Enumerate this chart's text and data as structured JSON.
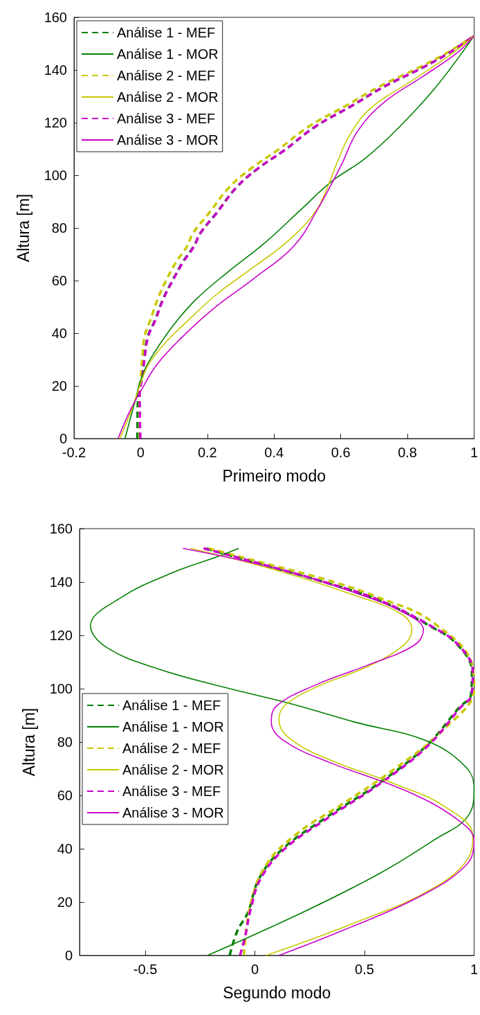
{
  "chart_data": [
    {
      "type": "line",
      "xlabel": "Primeiro modo",
      "ylabel": "Altura [m]",
      "xlim": [
        -0.2,
        1
      ],
      "xticks": [
        -0.2,
        0,
        0.2,
        0.4,
        0.6,
        0.8,
        1
      ],
      "ylim": [
        0,
        160
      ],
      "yticks": [
        0,
        20,
        40,
        60,
        80,
        100,
        120,
        140,
        160
      ],
      "grid": false,
      "legend": "top left",
      "marker": "none",
      "series": [
        {
          "name": "Análise 1 - MEF",
          "color": "#008000",
          "line_style": "dashed",
          "x": [
            -0.01,
            -0.008,
            0.004,
            0.011,
            0.022,
            0.043,
            0.067,
            0.095,
            0.126,
            0.159,
            0.179,
            0.226,
            0.288,
            0.352,
            0.431,
            0.524,
            0.635,
            0.729,
            0.847,
            0.926,
            1
          ],
          "values": [
            0,
            16.8,
            24,
            31,
            39,
            45,
            53,
            60,
            67,
            73,
            78,
            85.5,
            95.5,
            102.6,
            109.5,
            118.5,
            126.5,
            133.6,
            141,
            146.6,
            153
          ]
        },
        {
          "name": "Análise 1 - MOR",
          "color": "#008000",
          "line_style": "solid",
          "x": [
            -0.047,
            -0.02,
            0.008,
            0.048,
            0.104,
            0.167,
            0.263,
            0.374,
            0.486,
            0.572,
            0.674,
            0.777,
            0.886,
            1
          ],
          "values": [
            0,
            12.7,
            25,
            34,
            44,
            53,
            63.4,
            74.5,
            87.6,
            97.6,
            106.5,
            118.5,
            133.6,
            153
          ]
        },
        {
          "name": "Análise 2 - MEF",
          "color": "#c8c800",
          "line_style": "dashed",
          "x": [
            -0.003,
            -0.004,
            0.001,
            0.005,
            0.012,
            0.029,
            0.051,
            0.076,
            0.106,
            0.139,
            0.157,
            0.204,
            0.266,
            0.331,
            0.41,
            0.504,
            0.617,
            0.714,
            0.836,
            0.92,
            1
          ],
          "values": [
            0,
            16.8,
            24,
            31,
            39,
            45,
            53,
            60,
            67,
            73,
            78,
            85.5,
            95.5,
            102.6,
            109.5,
            118.5,
            126.5,
            133.6,
            141,
            146.6,
            153
          ]
        },
        {
          "name": "Análise 2 - MOR",
          "color": "#c8c800",
          "line_style": "solid",
          "x": [
            -0.063,
            -0.031,
            0,
            0.023,
            0.071,
            0.135,
            0.23,
            0.342,
            0.446,
            0.526,
            0.564,
            0.588,
            0.628,
            0.69,
            0.808,
            0.926,
            1
          ],
          "values": [
            0,
            9.7,
            21,
            28,
            36,
            44,
            55,
            65.4,
            75.5,
            86.6,
            96.6,
            104.5,
            115.5,
            125.5,
            135.5,
            145.5,
            153
          ]
        },
        {
          "name": "Análise 3 - MEF",
          "color": "#cc00cc",
          "line_style": "dashed",
          "x": [
            -0.001,
            -0.003,
            0.006,
            0.012,
            0.023,
            0.044,
            0.068,
            0.096,
            0.127,
            0.16,
            0.179,
            0.227,
            0.288,
            0.352,
            0.431,
            0.524,
            0.635,
            0.729,
            0.847,
            0.926,
            1
          ],
          "values": [
            0,
            16.8,
            24,
            31,
            39,
            45,
            53,
            60,
            67,
            73,
            78,
            85.5,
            95.5,
            102.6,
            109.5,
            118.5,
            126.5,
            133.6,
            141,
            146.6,
            153
          ]
        },
        {
          "name": "Análise 3 - MOR",
          "color": "#cc00cc",
          "line_style": "solid",
          "x": [
            -0.068,
            -0.031,
            0,
            0.048,
            0.12,
            0.215,
            0.342,
            0.462,
            0.533,
            0.572,
            0.604,
            0.65,
            0.729,
            0.847,
            0.95,
            1
          ],
          "values": [
            0,
            10.8,
            18,
            28,
            38,
            49,
            61,
            73.5,
            87.6,
            96.6,
            104.5,
            116.6,
            127.6,
            137.6,
            146.6,
            153
          ]
        }
      ]
    },
    {
      "type": "line",
      "xlabel": "Segundo modo",
      "ylabel": "Altura [m]",
      "xlim": [
        -0.8,
        1
      ],
      "xticks": [
        -0.5,
        0,
        0.5,
        1
      ],
      "ylim": [
        0,
        160
      ],
      "yticks": [
        0,
        20,
        40,
        60,
        80,
        100,
        120,
        140,
        160
      ],
      "grid": false,
      "legend": "left",
      "marker": "none",
      "series": [
        {
          "name": "Análise 1 - MEF",
          "color": "#008000",
          "line_style": "dashed",
          "x": [
            -0.115,
            -0.08,
            -0.032,
            0.02,
            0.125,
            0.325,
            0.565,
            0.78,
            0.935,
            0.985,
            0.99,
            0.925,
            0.805,
            0.57,
            0.335,
            0.035,
            -0.224
          ],
          "values": [
            0,
            9.2,
            16.1,
            28.9,
            39.8,
            51.7,
            64.5,
            78.4,
            93.2,
            97.5,
            106.4,
            116.4,
            123.2,
            133,
            139.5,
            146.5,
            152.6
          ]
        },
        {
          "name": "Análise 1 - MOR",
          "color": "#008000",
          "line_style": "solid",
          "x": [
            -0.216,
            0.217,
            0.573,
            0.81,
            0.976,
            1,
            0.964,
            0.787,
            0.455,
            0.158,
            -0.139,
            -0.436,
            -0.673,
            -0.75,
            -0.614,
            -0.376,
            -0.174,
            -0.074
          ],
          "values": [
            0,
            16.1,
            30.9,
            42.9,
            52.7,
            62.6,
            70.5,
            80.3,
            87.5,
            94.5,
            100.5,
            107.3,
            115.3,
            123.6,
            134,
            143.5,
            149.4,
            152.6
          ]
        },
        {
          "name": "Análise 2 - MEF",
          "color": "#c8c800",
          "line_style": "dashed",
          "x": [
            -0.05,
            -0.02,
            0.051,
            0.193,
            0.396,
            0.632,
            0.869,
            1,
            0.994,
            0.81,
            0.57,
            0.34,
            0.045,
            -0.21
          ],
          "values": [
            0,
            19,
            33.9,
            45.7,
            56.6,
            69.6,
            85.3,
            100,
            108,
            125,
            134,
            140.5,
            147,
            152.6
          ]
        },
        {
          "name": "Análise 2 - MOR",
          "color": "#c8c800",
          "line_style": "solid",
          "x": [
            0.051,
            0.455,
            0.81,
            0.976,
            0.994,
            0.869,
            0.632,
            0.336,
            0.158,
            0.11,
            0.134,
            0.277,
            0.514,
            0.68,
            0.716,
            0.668,
            0.455,
            0.098,
            -0.293
          ],
          "values": [
            0,
            12.2,
            25,
            36.9,
            44.8,
            55.7,
            64.5,
            73.5,
            81.4,
            88.3,
            93.5,
            100.5,
            108.3,
            116.4,
            122,
            128,
            135,
            144.4,
            152.6
          ]
        },
        {
          "name": "Análise 3 - MEF",
          "color": "#cc00cc",
          "line_style": "dashed",
          "x": [
            -0.068,
            -0.044,
            -0.02,
            0.027,
            0.134,
            0.336,
            0.573,
            0.787,
            0.941,
            0.988,
            0.994,
            0.928,
            0.81,
            0.573,
            0.336,
            0.039,
            -0.234
          ],
          "values": [
            0,
            7.3,
            17.1,
            28.9,
            39.8,
            51.7,
            64.5,
            78.4,
            93.2,
            97.5,
            106.4,
            116.4,
            123.2,
            133,
            139.5,
            146.5,
            152.6
          ]
        },
        {
          "name": "Análise 3 - MOR",
          "color": "#cc00cc",
          "line_style": "solid",
          "x": [
            0.11,
            0.396,
            0.75,
            0.964,
            1,
            0.928,
            0.692,
            0.336,
            0.134,
            0.075,
            0.098,
            0.277,
            0.514,
            0.727,
            0.769,
            0.692,
            0.455,
            0.098,
            -0.328
          ],
          "values": [
            0,
            9.2,
            22,
            33.9,
            42.9,
            50.7,
            61.6,
            72.5,
            80.4,
            87.3,
            93.5,
            101.4,
            108.8,
            116.3,
            122,
            128,
            136,
            145,
            152.6
          ]
        }
      ]
    }
  ]
}
